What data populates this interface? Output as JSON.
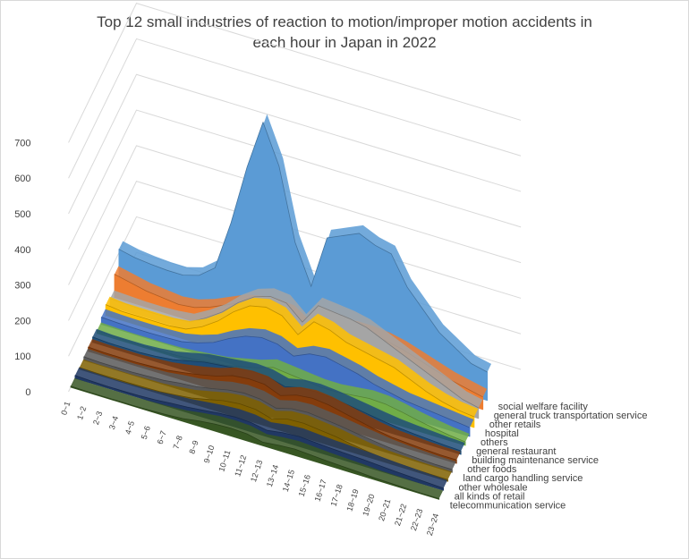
{
  "chart_data": {
    "type": "area",
    "title_line1": "Top 12 small industries of reaction to motion/improper motion accidents in",
    "title_line2": "each hour in Japan in 2022",
    "y_ticks": [
      "0",
      "100",
      "200",
      "300",
      "400",
      "500",
      "600",
      "700"
    ],
    "ylim": [
      0,
      700
    ],
    "grid": true,
    "categories": [
      "0~1",
      "1~2",
      "2~3",
      "3~4",
      "4~5",
      "5~6",
      "6~7",
      "7~8",
      "8~9",
      "9~10",
      "10~11",
      "11~12",
      "12~13",
      "13~14",
      "14~15",
      "15~16",
      "16~17",
      "17~18",
      "18~19",
      "19~20",
      "20~21",
      "21~22",
      "22~23",
      "23~24"
    ],
    "series": [
      {
        "name": "telecommunication service",
        "color": "#375623",
        "values": [
          3,
          2,
          2,
          2,
          2,
          3,
          5,
          8,
          15,
          20,
          22,
          20,
          10,
          15,
          18,
          15,
          12,
          10,
          8,
          5,
          4,
          3,
          2,
          2
        ]
      },
      {
        "name": "all kinds of retail",
        "color": "#203864",
        "values": [
          8,
          6,
          5,
          5,
          6,
          8,
          12,
          15,
          20,
          25,
          28,
          26,
          18,
          25,
          28,
          25,
          22,
          20,
          18,
          15,
          12,
          10,
          8,
          6
        ]
      },
      {
        "name": "other wholesale",
        "color": "#7f6000",
        "values": [
          5,
          4,
          4,
          4,
          5,
          6,
          10,
          15,
          25,
          35,
          40,
          38,
          25,
          38,
          40,
          35,
          30,
          22,
          15,
          10,
          8,
          6,
          5,
          5
        ]
      },
      {
        "name": "land cargo handling service",
        "color": "#595959",
        "values": [
          10,
          8,
          8,
          8,
          10,
          12,
          18,
          22,
          30,
          40,
          45,
          42,
          30,
          42,
          45,
          40,
          35,
          28,
          22,
          16,
          12,
          10,
          8,
          8
        ]
      },
      {
        "name": "other foods",
        "color": "#843c0c",
        "values": [
          12,
          10,
          10,
          10,
          12,
          15,
          22,
          30,
          40,
          55,
          60,
          58,
          40,
          55,
          60,
          55,
          45,
          35,
          25,
          18,
          15,
          12,
          10,
          10
        ]
      },
      {
        "name": "building maintenance service",
        "color": "#1f4e79",
        "values": [
          15,
          12,
          12,
          12,
          15,
          20,
          30,
          40,
          45,
          50,
          55,
          52,
          40,
          50,
          52,
          48,
          42,
          35,
          28,
          22,
          18,
          15,
          12,
          10
        ]
      },
      {
        "name": "general restaurant",
        "color": "#70ad47",
        "values": [
          8,
          6,
          5,
          5,
          5,
          6,
          10,
          15,
          20,
          30,
          40,
          55,
          50,
          45,
          40,
          40,
          45,
          50,
          48,
          40,
          30,
          22,
          15,
          10
        ]
      },
      {
        "name": "others",
        "color": "#4472c4",
        "values": [
          20,
          18,
          17,
          17,
          18,
          20,
          30,
          45,
          70,
          90,
          100,
          95,
          75,
          95,
          100,
          90,
          80,
          65,
          55,
          45,
          40,
          35,
          30,
          25
        ]
      },
      {
        "name": "hospital",
        "color": "#ffc000",
        "values": [
          30,
          25,
          25,
          25,
          25,
          30,
          50,
          80,
          120,
          150,
          160,
          150,
          110,
          160,
          150,
          130,
          120,
          110,
          100,
          80,
          60,
          45,
          35,
          30
        ]
      },
      {
        "name": "other retails",
        "color": "#a5a5a5",
        "values": [
          22,
          20,
          18,
          18,
          20,
          25,
          50,
          80,
          120,
          150,
          165,
          160,
          120,
          180,
          175,
          170,
          160,
          140,
          120,
          100,
          80,
          60,
          40,
          30
        ]
      },
      {
        "name": "general truck transportation service",
        "color": "#ed7d31",
        "values": [
          65,
          55,
          45,
          40,
          35,
          40,
          55,
          75,
          95,
          105,
          110,
          105,
          75,
          100,
          110,
          115,
          115,
          110,
          100,
          85,
          70,
          55,
          45,
          35
        ]
      },
      {
        "name": "social welfare facility",
        "color": "#5b9bd5",
        "values": [
          110,
          100,
          95,
          92,
          92,
          105,
          140,
          280,
          450,
          590,
          480,
          280,
          170,
          320,
          340,
          360,
          340,
          330,
          250,
          200,
          150,
          120,
          90,
          80
        ]
      }
    ]
  }
}
